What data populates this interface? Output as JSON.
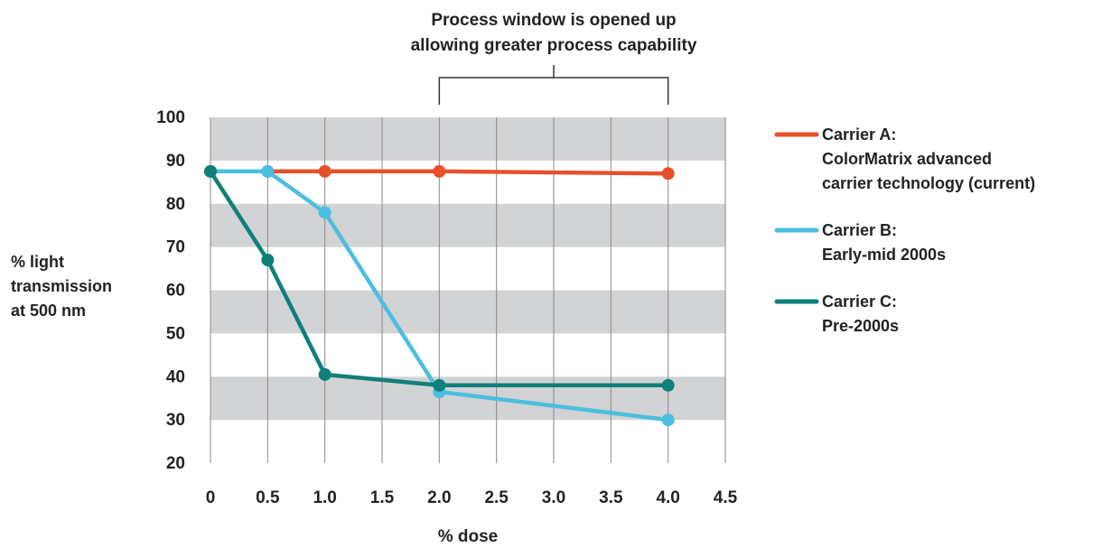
{
  "chart_data": {
    "type": "line",
    "x": [
      0,
      0.5,
      1.0,
      2.0,
      4.0
    ],
    "xlabel": "% dose",
    "ylabel": [
      "% light",
      "transmission",
      "at 500 nm"
    ],
    "xlim": [
      0,
      4.5
    ],
    "ylim": [
      20,
      100
    ],
    "x_ticks": [
      "0",
      "0.5",
      "1.0",
      "1.5",
      "2.0",
      "2.5",
      "3.0",
      "3.5",
      "4.0",
      "4.5"
    ],
    "y_ticks": [
      "100",
      "90",
      "80",
      "70",
      "60",
      "50",
      "40",
      "30",
      "20"
    ],
    "grid": "alternating horizontal gray bands with vertical gridlines",
    "legend_position": "right",
    "annotation": {
      "lines": [
        "Process window is opened up",
        "allowing greater process capability"
      ],
      "x_range": [
        2.0,
        4.0
      ]
    },
    "series": [
      {
        "name": "Carrier A:",
        "description": [
          "ColorMatrix advanced",
          "carrier technology (current)"
        ],
        "color": "#e8502a",
        "values": [
          87.5,
          87.5,
          87.5,
          87.5,
          87
        ]
      },
      {
        "name": "Carrier B:",
        "description": [
          "Early-mid 2000s"
        ],
        "color": "#4bbfdf",
        "values": [
          87.5,
          87.5,
          78,
          36.5,
          30
        ]
      },
      {
        "name": "Carrier C:",
        "description": [
          "Pre-2000s"
        ],
        "color": "#0f7f7a",
        "values": [
          87.5,
          67,
          40.5,
          38,
          38
        ]
      }
    ]
  }
}
